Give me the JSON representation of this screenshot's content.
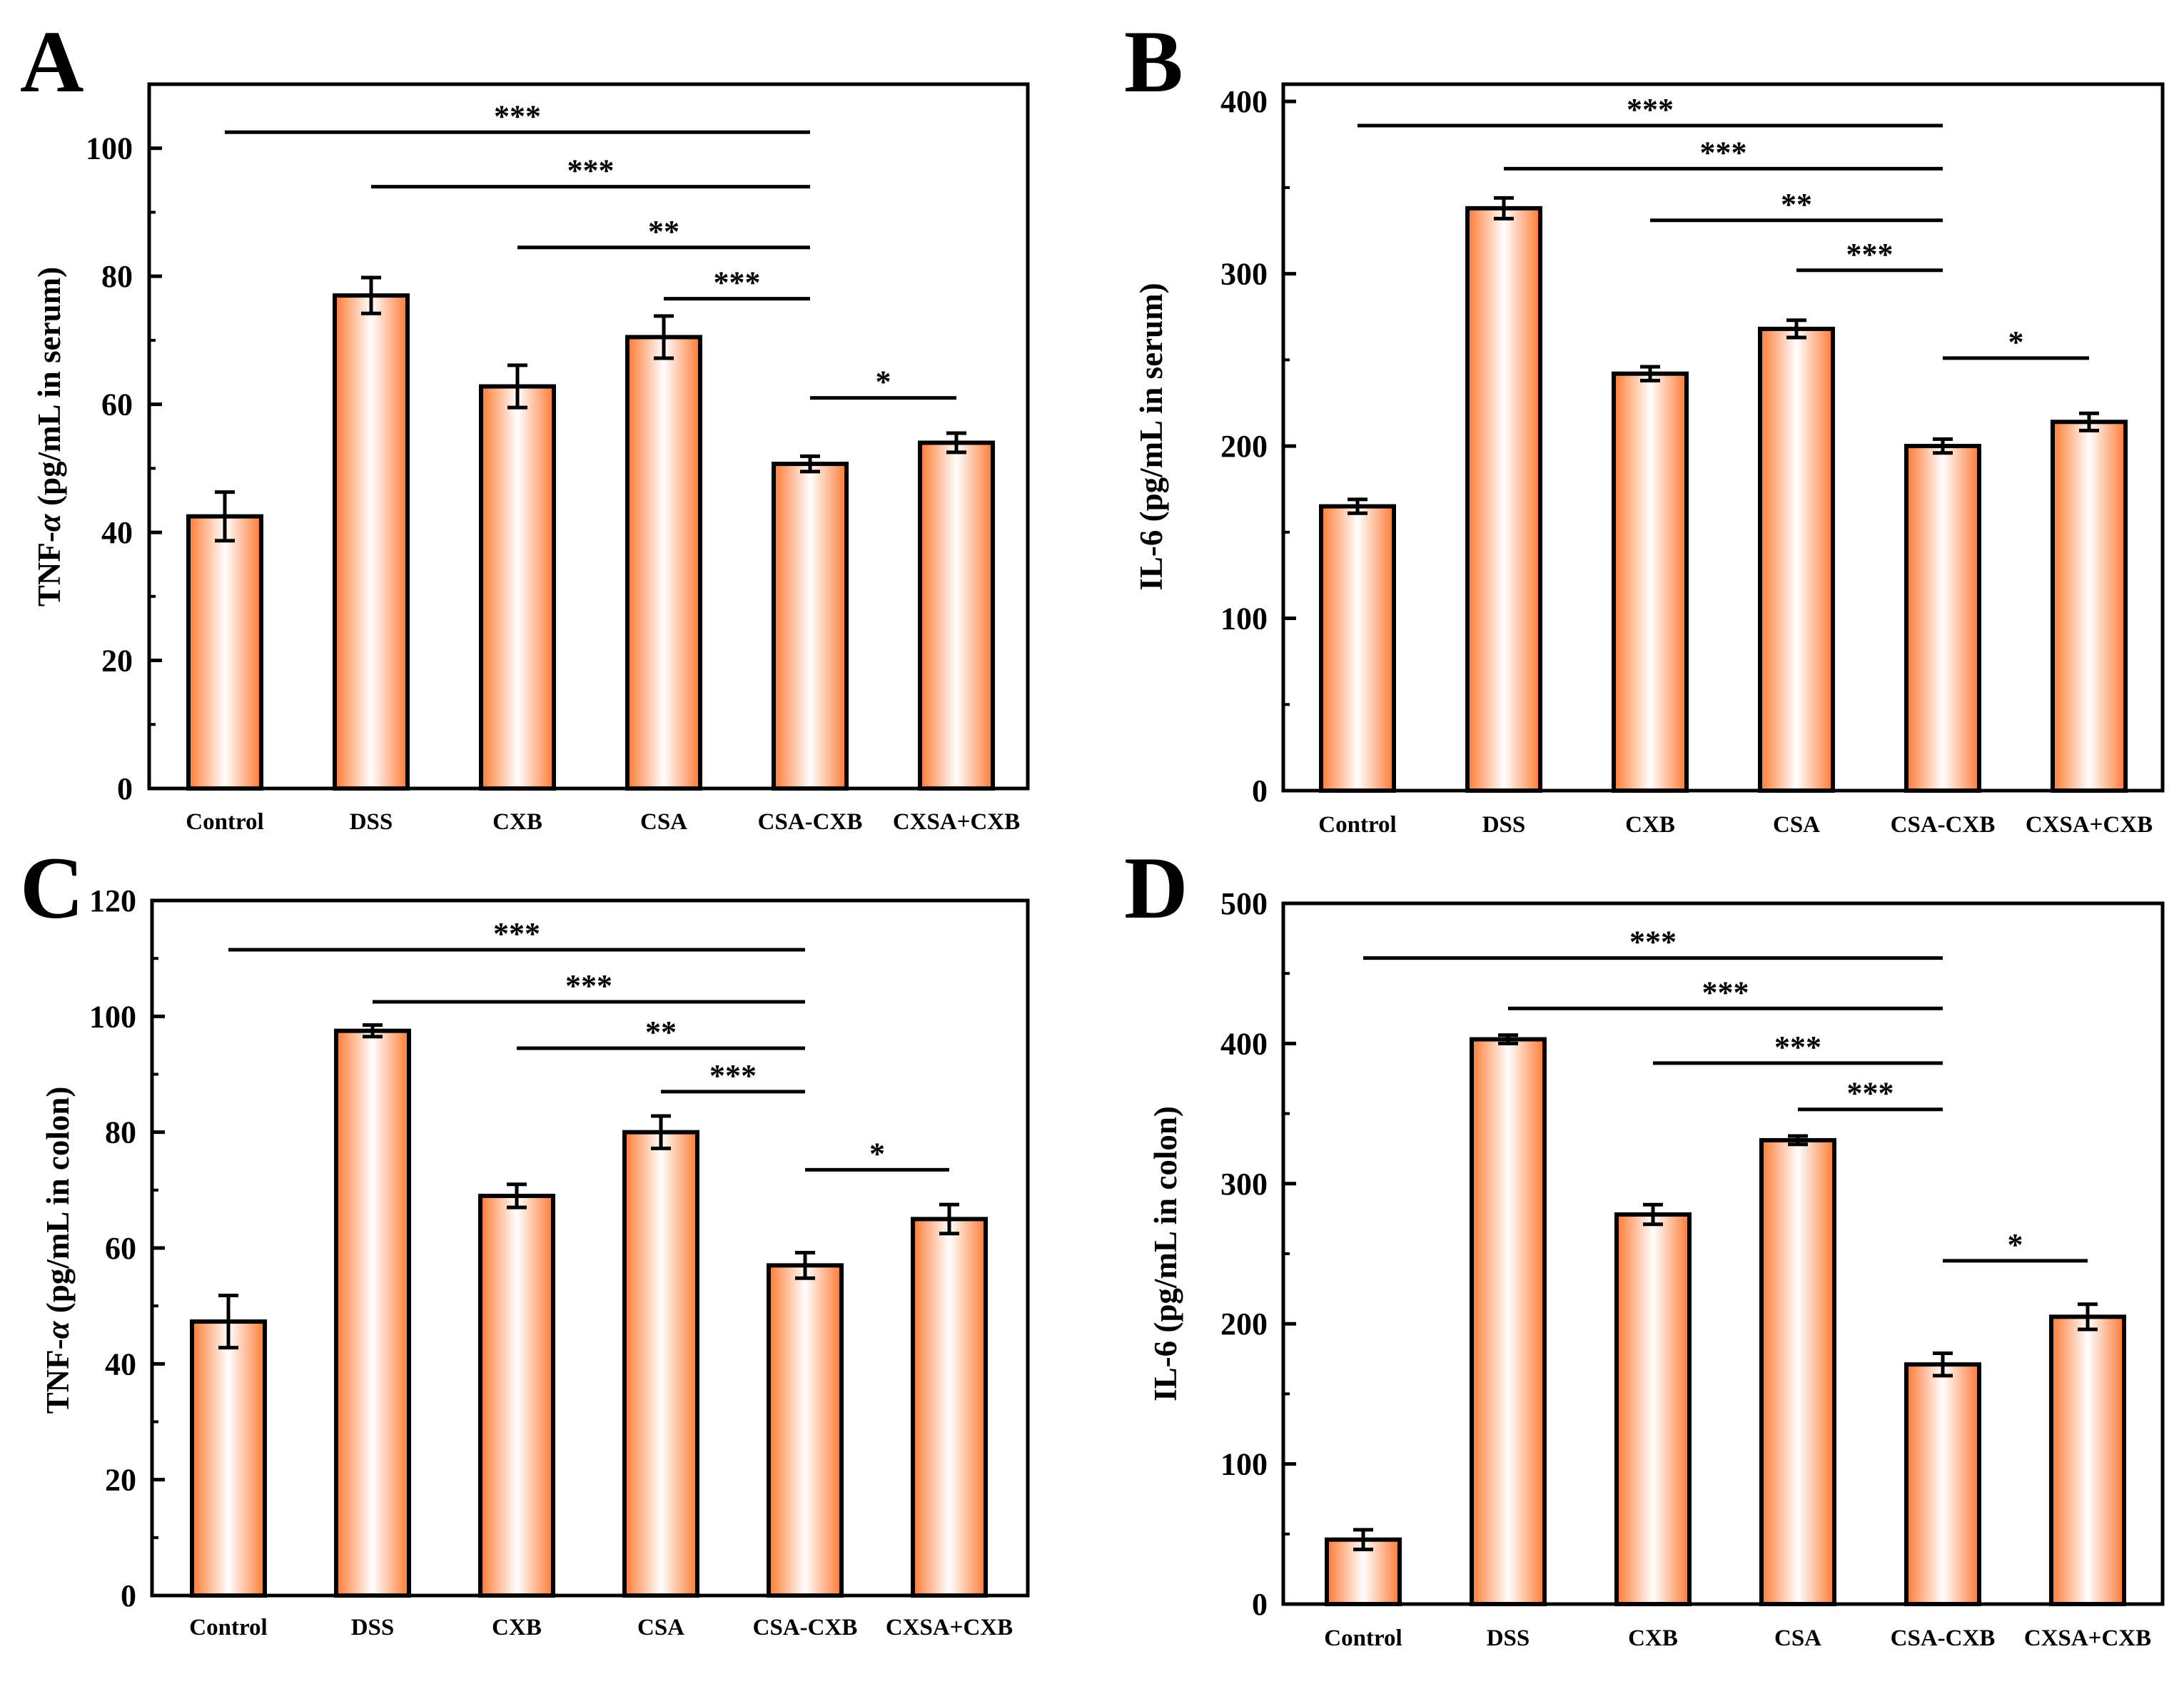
{
  "bar_colors": {
    "edge": "#ff7a33",
    "center": "#ffffff",
    "outline": "#000000"
  },
  "chart_data": [
    {
      "type": "bar",
      "panel": "A",
      "title": "",
      "xlabel": "",
      "ylabel_prefix": "TNF-",
      "ylabel_symbol": "α",
      "ylabel_suffix": " (pg/mL in serum)",
      "categories": [
        "Control",
        "DSS",
        "CXB",
        "CSA",
        "CSA-CXB",
        "CXSA+CXB"
      ],
      "values": [
        42.5,
        77,
        62.8,
        70.5,
        50.7,
        54
      ],
      "errors": [
        3.8,
        2.8,
        3.3,
        3.3,
        1.2,
        1.5
      ],
      "ylim": [
        0,
        110
      ],
      "yticks": [
        0,
        20,
        40,
        60,
        80,
        100
      ],
      "ytick_labels": [
        "0",
        "20",
        "40",
        "60",
        "80",
        "100"
      ],
      "minor_step": 10,
      "significance": [
        {
          "from": 0,
          "to": 4,
          "y": 102.5,
          "label": "***"
        },
        {
          "from": 1,
          "to": 4,
          "y": 94,
          "label": "***"
        },
        {
          "from": 2,
          "to": 4,
          "y": 84.5,
          "label": "**"
        },
        {
          "from": 3,
          "to": 4,
          "y": 76.5,
          "label": "***"
        },
        {
          "from": 4,
          "to": 5,
          "y": 61,
          "label": "*"
        }
      ]
    },
    {
      "type": "bar",
      "panel": "B",
      "title": "",
      "xlabel": "",
      "ylabel_prefix": "IL-6",
      "ylabel_symbol": "",
      "ylabel_suffix": " (pg/mL in serum)",
      "categories": [
        "Control",
        "DSS",
        "CXB",
        "CSA",
        "CSA-CXB",
        "CXSA+CXB"
      ],
      "values": [
        165,
        338,
        242,
        268,
        200,
        214
      ],
      "errors": [
        4,
        6,
        4,
        5,
        4,
        5
      ],
      "ylim": [
        0,
        410
      ],
      "yticks": [
        0,
        100,
        200,
        300,
        400
      ],
      "ytick_labels": [
        "0",
        "100",
        "200",
        "300",
        "400"
      ],
      "minor_step": 50,
      "significance": [
        {
          "from": 0,
          "to": 4,
          "y": 386,
          "label": "***"
        },
        {
          "from": 1,
          "to": 4,
          "y": 361,
          "label": "***"
        },
        {
          "from": 2,
          "to": 4,
          "y": 331,
          "label": "**"
        },
        {
          "from": 3,
          "to": 4,
          "y": 302,
          "label": "***"
        },
        {
          "from": 4,
          "to": 5,
          "y": 251,
          "label": "*"
        }
      ]
    },
    {
      "type": "bar",
      "panel": "C",
      "title": "",
      "xlabel": "",
      "ylabel_prefix": "TNF-",
      "ylabel_symbol": "α",
      "ylabel_suffix": " (pg/mL in colon)",
      "categories": [
        "Control",
        "DSS",
        "CXB",
        "CSA",
        "CSA-CXB",
        "CXSA+CXB"
      ],
      "values": [
        47.3,
        97.5,
        69,
        80,
        57,
        65
      ],
      "errors": [
        4.5,
        1,
        2,
        2.8,
        2.2,
        2.5
      ],
      "ylim": [
        0,
        120
      ],
      "yticks": [
        0,
        20,
        40,
        60,
        80,
        100,
        120
      ],
      "ytick_labels": [
        "0",
        "20",
        "40",
        "60",
        "80",
        "100",
        "120"
      ],
      "minor_step": 10,
      "significance": [
        {
          "from": 0,
          "to": 4,
          "y": 111.5,
          "label": "***"
        },
        {
          "from": 1,
          "to": 4,
          "y": 102.5,
          "label": "***"
        },
        {
          "from": 2,
          "to": 4,
          "y": 94.5,
          "label": "**"
        },
        {
          "from": 3,
          "to": 4,
          "y": 87,
          "label": "***"
        },
        {
          "from": 4,
          "to": 5,
          "y": 73.5,
          "label": "*"
        }
      ]
    },
    {
      "type": "bar",
      "panel": "D",
      "title": "",
      "xlabel": "",
      "ylabel_prefix": "IL-6",
      "ylabel_symbol": "",
      "ylabel_suffix": " (pg/mL in colon)",
      "categories": [
        "Control",
        "DSS",
        "CXB",
        "CSA",
        "CSA-CXB",
        "CXSA+CXB"
      ],
      "values": [
        46,
        403,
        278,
        331,
        171,
        205
      ],
      "errors": [
        7,
        3,
        7,
        3,
        8,
        9
      ],
      "ylim": [
        0,
        500
      ],
      "yticks": [
        0,
        100,
        200,
        300,
        400,
        500
      ],
      "ytick_labels": [
        "0",
        "100",
        "200",
        "300",
        "400",
        "500"
      ],
      "minor_step": 50,
      "significance": [
        {
          "from": 0,
          "to": 4,
          "y": 461,
          "label": "***"
        },
        {
          "from": 1,
          "to": 4,
          "y": 425,
          "label": "***"
        },
        {
          "from": 2,
          "to": 4,
          "y": 386,
          "label": "***"
        },
        {
          "from": 3,
          "to": 4,
          "y": 353,
          "label": "***"
        },
        {
          "from": 4,
          "to": 5,
          "y": 245,
          "label": "*"
        }
      ]
    }
  ]
}
